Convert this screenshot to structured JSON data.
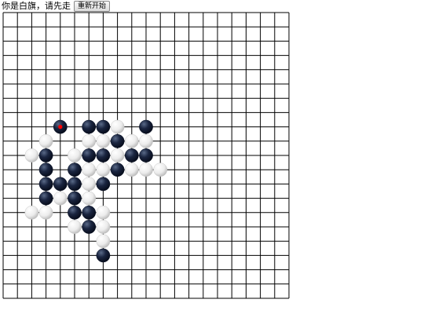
{
  "header": {
    "status": "你是白旗，请先走",
    "restart_label": "重新开始"
  },
  "board": {
    "size": 21,
    "line_color": "#000000",
    "black_color": "#0d1a33",
    "white_color": "#ffffff",
    "last_move_marker_color": "#ff0000",
    "last_move": [
      4,
      8
    ],
    "stones": [
      {
        "c": 4,
        "r": 8,
        "color": "black"
      },
      {
        "c": 6,
        "r": 8,
        "color": "black"
      },
      {
        "c": 7,
        "r": 8,
        "color": "black"
      },
      {
        "c": 8,
        "r": 8,
        "color": "white"
      },
      {
        "c": 10,
        "r": 8,
        "color": "black"
      },
      {
        "c": 3,
        "r": 9,
        "color": "white"
      },
      {
        "c": 6,
        "r": 9,
        "color": "white"
      },
      {
        "c": 7,
        "r": 9,
        "color": "white"
      },
      {
        "c": 8,
        "r": 9,
        "color": "black"
      },
      {
        "c": 9,
        "r": 9,
        "color": "white"
      },
      {
        "c": 10,
        "r": 9,
        "color": "white"
      },
      {
        "c": 2,
        "r": 10,
        "color": "white"
      },
      {
        "c": 3,
        "r": 10,
        "color": "black"
      },
      {
        "c": 5,
        "r": 10,
        "color": "white"
      },
      {
        "c": 6,
        "r": 10,
        "color": "black"
      },
      {
        "c": 7,
        "r": 10,
        "color": "black"
      },
      {
        "c": 8,
        "r": 10,
        "color": "white"
      },
      {
        "c": 9,
        "r": 10,
        "color": "black"
      },
      {
        "c": 10,
        "r": 10,
        "color": "black"
      },
      {
        "c": 3,
        "r": 11,
        "color": "black"
      },
      {
        "c": 5,
        "r": 11,
        "color": "black"
      },
      {
        "c": 6,
        "r": 11,
        "color": "white"
      },
      {
        "c": 7,
        "r": 11,
        "color": "white"
      },
      {
        "c": 8,
        "r": 11,
        "color": "black"
      },
      {
        "c": 9,
        "r": 11,
        "color": "white"
      },
      {
        "c": 10,
        "r": 11,
        "color": "white"
      },
      {
        "c": 11,
        "r": 11,
        "color": "white"
      },
      {
        "c": 3,
        "r": 12,
        "color": "black"
      },
      {
        "c": 4,
        "r": 12,
        "color": "black"
      },
      {
        "c": 5,
        "r": 12,
        "color": "black"
      },
      {
        "c": 6,
        "r": 12,
        "color": "white"
      },
      {
        "c": 7,
        "r": 12,
        "color": "black"
      },
      {
        "c": 3,
        "r": 13,
        "color": "black"
      },
      {
        "c": 4,
        "r": 13,
        "color": "white"
      },
      {
        "c": 5,
        "r": 13,
        "color": "black"
      },
      {
        "c": 6,
        "r": 13,
        "color": "white"
      },
      {
        "c": 2,
        "r": 14,
        "color": "white"
      },
      {
        "c": 3,
        "r": 14,
        "color": "white"
      },
      {
        "c": 5,
        "r": 14,
        "color": "black"
      },
      {
        "c": 6,
        "r": 14,
        "color": "black"
      },
      {
        "c": 7,
        "r": 14,
        "color": "white"
      },
      {
        "c": 5,
        "r": 15,
        "color": "white"
      },
      {
        "c": 6,
        "r": 15,
        "color": "black"
      },
      {
        "c": 7,
        "r": 15,
        "color": "white"
      },
      {
        "c": 7,
        "r": 16,
        "color": "white"
      },
      {
        "c": 7,
        "r": 17,
        "color": "black"
      }
    ]
  }
}
